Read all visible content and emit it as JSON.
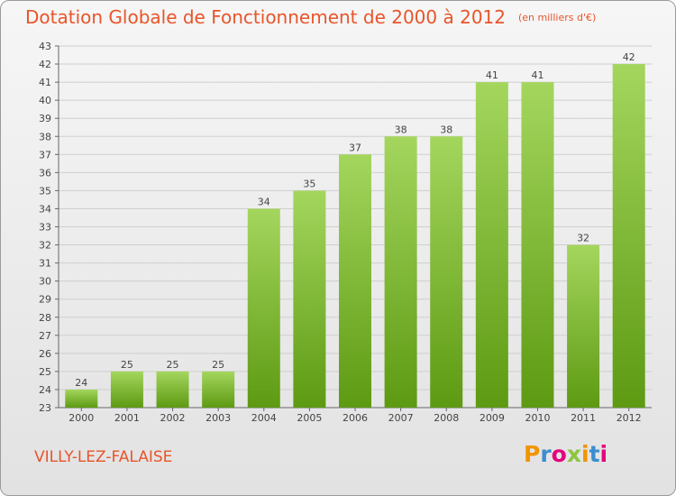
{
  "header": {
    "title": "Dotation Globale de Fonctionnement de 2000 à 2012",
    "unit": "(en milliers d'€)"
  },
  "footer": {
    "commune": "VILLY-LEZ-FALAISE",
    "brand_letters": [
      "P",
      "r",
      "o",
      "x",
      "i",
      "t",
      "i"
    ],
    "brand_colors": [
      "#f29400",
      "#3b8ed0",
      "#e5007e",
      "#8cc63f",
      "#f29400",
      "#3b8ed0",
      "#e5007e"
    ]
  },
  "chart_data": {
    "type": "bar",
    "title": "Dotation Globale de Fonctionnement de 2000 à 2012",
    "categories": [
      "2000",
      "2001",
      "2002",
      "2003",
      "2004",
      "2005",
      "2006",
      "2007",
      "2008",
      "2009",
      "2010",
      "2011",
      "2012"
    ],
    "values": [
      24,
      25,
      25,
      25,
      34,
      35,
      37,
      38,
      38,
      41,
      41,
      32,
      42
    ],
    "ylim": [
      23,
      43
    ],
    "yticks": [
      23,
      24,
      25,
      26,
      27,
      28,
      29,
      30,
      31,
      32,
      33,
      34,
      35,
      36,
      37,
      38,
      39,
      40,
      41,
      42,
      43
    ],
    "grid": true,
    "bar_color_top": "#a4d65e",
    "bar_color_bottom": "#5d9a12"
  }
}
